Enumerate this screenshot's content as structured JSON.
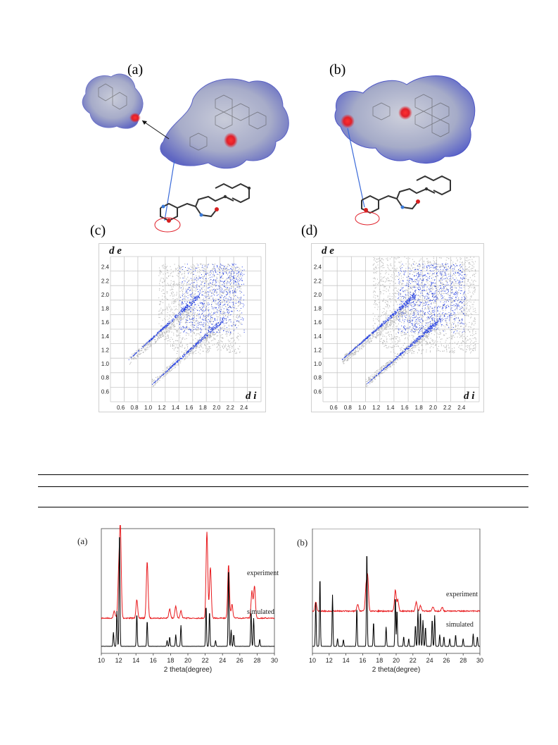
{
  "hirshfeld": {
    "panel_a_label": "(a)",
    "panel_b_label": "(b)"
  },
  "fingerprint": {
    "panels": [
      {
        "label": "(c)"
      },
      {
        "label": "(d)"
      }
    ],
    "y_axis_symbol": "d e",
    "x_axis_symbol": "d i",
    "y_ticks": [
      "2.4",
      "2.2",
      "2.0",
      "1.8",
      "1.6",
      "1.4",
      "1.2",
      "1.0",
      "0.8",
      "0.6"
    ],
    "x_ticks": [
      "0.6",
      "0.8",
      "1.0",
      "1.2",
      "1.4",
      "1.6",
      "1.8",
      "2.0",
      "2.2",
      "2.4"
    ]
  },
  "chart_data": [
    {
      "type": "line",
      "panel_label": "(a)",
      "xlabel": "2 theta(degree)",
      "x_ticks": [
        10,
        12,
        14,
        16,
        18,
        20,
        22,
        24,
        26,
        28,
        30
      ],
      "xlim": [
        10,
        30
      ],
      "series": [
        {
          "name": "experiment",
          "color": "#e8191c",
          "peaks": [
            [
              11.5,
              0.08
            ],
            [
              12.0,
              0.45
            ],
            [
              12.2,
              1.0
            ],
            [
              14.1,
              0.2
            ],
            [
              15.3,
              0.63
            ],
            [
              17.9,
              0.1
            ],
            [
              18.6,
              0.13
            ],
            [
              19.2,
              0.08
            ],
            [
              22.2,
              0.96
            ],
            [
              22.6,
              0.57
            ],
            [
              24.7,
              0.6
            ],
            [
              25.1,
              0.15
            ],
            [
              27.4,
              0.3
            ],
            [
              27.7,
              0.36
            ]
          ]
        },
        {
          "name": "simulated",
          "color": "#000000",
          "peaks": [
            [
              11.4,
              0.12
            ],
            [
              11.8,
              0.3
            ],
            [
              12.1,
              1.0
            ],
            [
              14.1,
              0.28
            ],
            [
              15.3,
              0.22
            ],
            [
              17.6,
              0.05
            ],
            [
              17.9,
              0.08
            ],
            [
              18.6,
              0.1
            ],
            [
              19.2,
              0.18
            ],
            [
              22.1,
              0.35
            ],
            [
              22.5,
              0.3
            ],
            [
              23.2,
              0.05
            ],
            [
              24.7,
              0.68
            ],
            [
              25.0,
              0.14
            ],
            [
              25.3,
              0.1
            ],
            [
              27.3,
              0.3
            ],
            [
              27.6,
              0.24
            ],
            [
              28.3,
              0.06
            ]
          ]
        }
      ]
    },
    {
      "type": "line",
      "panel_label": "(b)",
      "xlabel": "2 theta(degree)",
      "x_ticks": [
        10,
        12,
        14,
        16,
        18,
        20,
        22,
        24,
        26,
        28,
        30
      ],
      "xlim": [
        10,
        30
      ],
      "series": [
        {
          "name": "experiment",
          "color": "#e8191c",
          "peaks": [
            [
              10.4,
              0.13
            ],
            [
              15.4,
              0.1
            ],
            [
              16.4,
              0.32
            ],
            [
              16.6,
              0.48
            ],
            [
              19.9,
              0.3
            ],
            [
              20.2,
              0.16
            ],
            [
              22.4,
              0.13
            ],
            [
              22.9,
              0.08
            ],
            [
              24.4,
              0.06
            ],
            [
              25.5,
              0.05
            ]
          ]
        },
        {
          "name": "simulated",
          "color": "#000000",
          "peaks": [
            [
              10.4,
              0.45
            ],
            [
              10.9,
              0.72
            ],
            [
              12.4,
              0.53
            ],
            [
              13.0,
              0.08
            ],
            [
              13.7,
              0.07
            ],
            [
              15.3,
              0.4
            ],
            [
              16.5,
              1.0
            ],
            [
              17.3,
              0.25
            ],
            [
              18.8,
              0.2
            ],
            [
              19.9,
              0.52
            ],
            [
              20.1,
              0.38
            ],
            [
              20.9,
              0.1
            ],
            [
              21.5,
              0.08
            ],
            [
              22.3,
              0.22
            ],
            [
              22.6,
              0.38
            ],
            [
              22.9,
              0.36
            ],
            [
              23.2,
              0.27
            ],
            [
              23.5,
              0.2
            ],
            [
              24.3,
              0.28
            ],
            [
              24.6,
              0.32
            ],
            [
              25.2,
              0.12
            ],
            [
              25.7,
              0.1
            ],
            [
              26.4,
              0.08
            ],
            [
              27.1,
              0.12
            ],
            [
              28.0,
              0.08
            ],
            [
              29.2,
              0.13
            ],
            [
              29.7,
              0.1
            ]
          ]
        }
      ]
    }
  ],
  "colors": {
    "surface": "#9aa3d6",
    "contact_red": "#e0202a",
    "fingerprint_gray": "#b9b9b9",
    "fingerprint_blue": "#1f3be0",
    "pxrd_red": "#e8191c",
    "pxrd_black": "#000000"
  }
}
